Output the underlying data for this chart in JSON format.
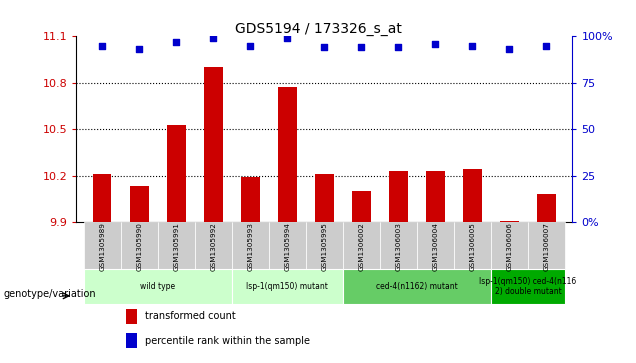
{
  "title": "GDS5194 / 173326_s_at",
  "samples": [
    "GSM1305989",
    "GSM1305990",
    "GSM1305991",
    "GSM1305992",
    "GSM1305993",
    "GSM1305994",
    "GSM1305995",
    "GSM1306002",
    "GSM1306003",
    "GSM1306004",
    "GSM1306005",
    "GSM1306006",
    "GSM1306007"
  ],
  "bar_values": [
    10.21,
    10.13,
    10.53,
    10.9,
    10.19,
    10.77,
    10.21,
    10.1,
    10.23,
    10.23,
    10.24,
    9.91,
    10.08
  ],
  "percentile_values": [
    95,
    93,
    97,
    99,
    95,
    99,
    94,
    94,
    94,
    96,
    95,
    93,
    95
  ],
  "bar_color": "#cc0000",
  "percentile_color": "#0000cc",
  "ylim_left": [
    9.9,
    11.1
  ],
  "ylim_right": [
    0,
    100
  ],
  "yticks_left": [
    9.9,
    10.2,
    10.5,
    10.8,
    11.1
  ],
  "yticks_right": [
    0,
    25,
    50,
    75,
    100
  ],
  "ytick_labels_right": [
    "0%",
    "25",
    "50",
    "75",
    "100%"
  ],
  "hlines": [
    10.2,
    10.5,
    10.8
  ],
  "genotype_groups": [
    {
      "label": "wild type",
      "start": 0,
      "end": 4,
      "color": "#ccffcc"
    },
    {
      "label": "lsp-1(qm150) mutant",
      "start": 4,
      "end": 7,
      "color": "#ccffcc"
    },
    {
      "label": "ced-4(n1162) mutant",
      "start": 7,
      "end": 11,
      "color": "#66cc66"
    },
    {
      "label": "lsp-1(qm150) ced-4(n116\n2) double mutant",
      "start": 11,
      "end": 13,
      "color": "#00aa00"
    }
  ],
  "legend_bar_label": "transformed count",
  "legend_pct_label": "percentile rank within the sample",
  "genotype_label": "genotype/variation",
  "bar_width": 0.5,
  "background_color": "#ffffff",
  "gray_color": "#cccccc"
}
